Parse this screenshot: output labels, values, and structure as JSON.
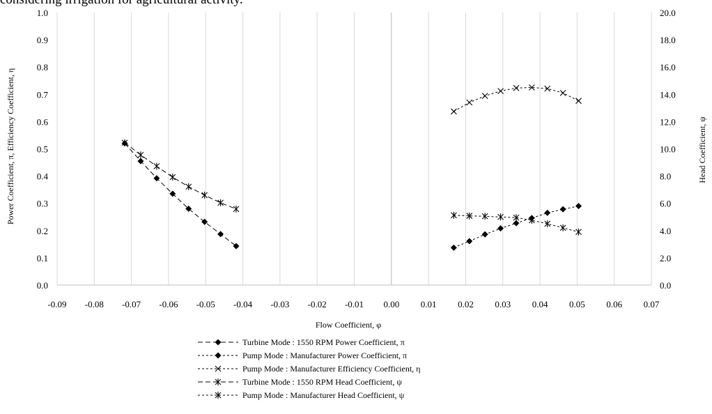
{
  "caption_fragment": "considering irrigation for agricultural activity.",
  "chart_data": {
    "type": "scatter",
    "title": "",
    "xlabel": "Flow  Coefficient, φ",
    "ylabel_left": "Power Coefficient, π, Efficiency Coefficient, η",
    "ylabel_right": "Head Coefficient, ψ",
    "xlim": [
      -0.09,
      0.07
    ],
    "ylim_left": [
      0,
      1
    ],
    "ylim_right": [
      0,
      20
    ],
    "x_ticks": [
      "-0.09",
      "-0.08",
      "-0.07",
      "-0.06",
      "-0.05",
      "-0.04",
      "-0.03",
      "-0.02",
      "-0.01",
      "0.00",
      "0.01",
      "0.02",
      "0.03",
      "0.04",
      "0.05",
      "0.06",
      "0.07"
    ],
    "y_left_ticks": [
      "0.0",
      "0.1",
      "0.2",
      "0.3",
      "0.4",
      "0.5",
      "0.6",
      "0.7",
      "0.8",
      "0.9",
      "1.0"
    ],
    "y_right_ticks": [
      "0.0",
      "2.0",
      "4.0",
      "6.0",
      "8.0",
      "10.0",
      "12.0",
      "14.0",
      "16.0",
      "18.0",
      "20.0"
    ],
    "grid": "vertical",
    "legend_position": "bottom",
    "series": [
      {
        "name": "Turbine Mode : 1550 RPM Power Coefficient, π",
        "axis": "left",
        "marker": "diamond",
        "dash": "long",
        "x": [
          -0.0718,
          -0.0675,
          -0.0632,
          -0.0589,
          -0.0546,
          -0.0503,
          -0.046,
          -0.0418
        ],
        "y": [
          0.52,
          0.455,
          0.392,
          0.335,
          0.28,
          0.232,
          0.187,
          0.143
        ]
      },
      {
        "name": "Pump Mode : Manufacturer Power Coefficient, π",
        "axis": "left",
        "marker": "diamond",
        "dash": "short",
        "x": [
          0.0168,
          0.021,
          0.0252,
          0.0294,
          0.0336,
          0.0378,
          0.042,
          0.0462,
          0.0504
        ],
        "y": [
          0.137,
          0.161,
          0.186,
          0.208,
          0.227,
          0.246,
          0.265,
          0.278,
          0.29
        ]
      },
      {
        "name": "Pump Mode : Manufacturer Efficiency Coefficient, η",
        "axis": "left",
        "marker": "x",
        "dash": "short",
        "x": [
          0.0168,
          0.021,
          0.0252,
          0.0294,
          0.0336,
          0.0378,
          0.042,
          0.0462,
          0.0504
        ],
        "y": [
          0.637,
          0.67,
          0.694,
          0.712,
          0.723,
          0.725,
          0.721,
          0.705,
          0.676
        ]
      },
      {
        "name": "Turbine Mode : 1550 RPM Head Coefficient, ψ",
        "axis": "right",
        "marker": "asterisk",
        "dash": "long",
        "x": [
          -0.0718,
          -0.0675,
          -0.0632,
          -0.0589,
          -0.0546,
          -0.0503,
          -0.046,
          -0.0418
        ],
        "y": [
          10.45,
          9.55,
          8.72,
          7.92,
          7.22,
          6.6,
          6.04,
          5.58
        ]
      },
      {
        "name": "Pump Mode : Manufacturer Head Coefficient, ψ",
        "axis": "right",
        "marker": "asterisk",
        "dash": "short",
        "x": [
          0.0168,
          0.021,
          0.0252,
          0.0294,
          0.0336,
          0.0378,
          0.042,
          0.0462,
          0.0504
        ],
        "y": [
          5.12,
          5.08,
          5.05,
          5.0,
          4.95,
          4.75,
          4.5,
          4.2,
          3.9
        ]
      }
    ]
  }
}
